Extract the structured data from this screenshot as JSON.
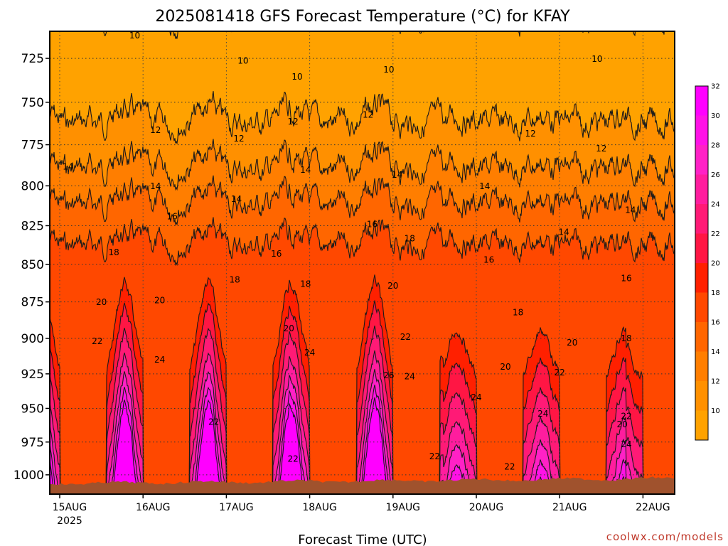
{
  "title": "2025081418 GFS Forecast Temperature (°C) for KFAY",
  "credit": "coolwx.com/models",
  "chart_data": {
    "type": "heatmap",
    "title": "2025081418 GFS Forecast Temperature (°C) for KFAY",
    "xlabel": "Forecast Time (UTC)",
    "ylabel": "",
    "x_ticks": [
      "15AUG",
      "16AUG",
      "17AUG",
      "18AUG",
      "19AUG",
      "20AUG",
      "21AUG",
      "22AUG"
    ],
    "x_year_label": "2025",
    "y_ticks": [
      725,
      750,
      775,
      800,
      825,
      850,
      875,
      900,
      925,
      950,
      975,
      1000
    ],
    "ylim": [
      1015,
      710
    ],
    "y_scale": "log",
    "colorbar": {
      "levels": [
        10,
        12,
        14,
        16,
        18,
        20,
        22,
        24,
        26,
        28,
        30,
        32
      ],
      "colors": [
        "#ffa200",
        "#ff9000",
        "#ff7e00",
        "#ff6600",
        "#ff4800",
        "#ff2000",
        "#ff1644",
        "#ff1a76",
        "#ff1d9e",
        "#ff21c6",
        "#ff12e6",
        "#ff00ff"
      ]
    },
    "contour_labels": [
      {
        "value": 10,
        "x_day": 0.9,
        "p": 714
      },
      {
        "value": 10,
        "x_day": 2.2,
        "p": 728
      },
      {
        "value": 10,
        "x_day": 2.85,
        "p": 737
      },
      {
        "value": 10,
        "x_day": 3.95,
        "p": 733
      },
      {
        "value": 10,
        "x_day": 6.45,
        "p": 727
      },
      {
        "value": 12,
        "x_day": 1.15,
        "p": 768
      },
      {
        "value": 12,
        "x_day": 2.15,
        "p": 773
      },
      {
        "value": 12,
        "x_day": 2.8,
        "p": 763
      },
      {
        "value": 12,
        "x_day": 3.7,
        "p": 759
      },
      {
        "value": 12,
        "x_day": 5.65,
        "p": 770
      },
      {
        "value": 12,
        "x_day": 6.5,
        "p": 779
      },
      {
        "value": 14,
        "x_day": 0.1,
        "p": 790
      },
      {
        "value": 14,
        "x_day": 1.15,
        "p": 802
      },
      {
        "value": 14,
        "x_day": 2.12,
        "p": 810
      },
      {
        "value": 14,
        "x_day": 2.95,
        "p": 792
      },
      {
        "value": 14,
        "x_day": 4.05,
        "p": 795
      },
      {
        "value": 14,
        "x_day": 5.1,
        "p": 802
      },
      {
        "value": 14,
        "x_day": 6.05,
        "p": 831
      },
      {
        "value": 14,
        "x_day": 6.85,
        "p": 817
      },
      {
        "value": 16,
        "x_day": 1.35,
        "p": 821
      },
      {
        "value": 16,
        "x_day": 2.6,
        "p": 845
      },
      {
        "value": 16,
        "x_day": 3.75,
        "p": 826
      },
      {
        "value": 16,
        "x_day": 5.15,
        "p": 849
      },
      {
        "value": 16,
        "x_day": 6.8,
        "p": 861
      },
      {
        "value": 18,
        "x_day": 0.65,
        "p": 844
      },
      {
        "value": 18,
        "x_day": 2.1,
        "p": 862
      },
      {
        "value": 18,
        "x_day": 2.95,
        "p": 865
      },
      {
        "value": 18,
        "x_day": 4.2,
        "p": 835
      },
      {
        "value": 18,
        "x_day": 5.5,
        "p": 884
      },
      {
        "value": 18,
        "x_day": 6.8,
        "p": 902
      },
      {
        "value": 20,
        "x_day": 0.5,
        "p": 877
      },
      {
        "value": 20,
        "x_day": 1.2,
        "p": 876
      },
      {
        "value": 20,
        "x_day": 2.75,
        "p": 895
      },
      {
        "value": 20,
        "x_day": 4.0,
        "p": 866
      },
      {
        "value": 20,
        "x_day": 5.35,
        "p": 922
      },
      {
        "value": 20,
        "x_day": 6.15,
        "p": 905
      },
      {
        "value": 20,
        "x_day": 6.75,
        "p": 964
      },
      {
        "value": 22,
        "x_day": 0.45,
        "p": 904
      },
      {
        "value": 22,
        "x_day": 1.85,
        "p": 962
      },
      {
        "value": 22,
        "x_day": 2.8,
        "p": 990
      },
      {
        "value": 22,
        "x_day": 4.15,
        "p": 901
      },
      {
        "value": 22,
        "x_day": 4.5,
        "p": 988
      },
      {
        "value": 22,
        "x_day": 5.4,
        "p": 996
      },
      {
        "value": 22,
        "x_day": 6.0,
        "p": 926
      },
      {
        "value": 22,
        "x_day": 6.8,
        "p": 958
      },
      {
        "value": 24,
        "x_day": 1.2,
        "p": 917
      },
      {
        "value": 24,
        "x_day": 3.0,
        "p": 912
      },
      {
        "value": 24,
        "x_day": 4.2,
        "p": 929
      },
      {
        "value": 24,
        "x_day": 5.0,
        "p": 944
      },
      {
        "value": 24,
        "x_day": 5.8,
        "p": 956
      },
      {
        "value": 24,
        "x_day": 6.8,
        "p": 979
      },
      {
        "value": 26,
        "x_day": 3.95,
        "p": 928
      }
    ]
  }
}
